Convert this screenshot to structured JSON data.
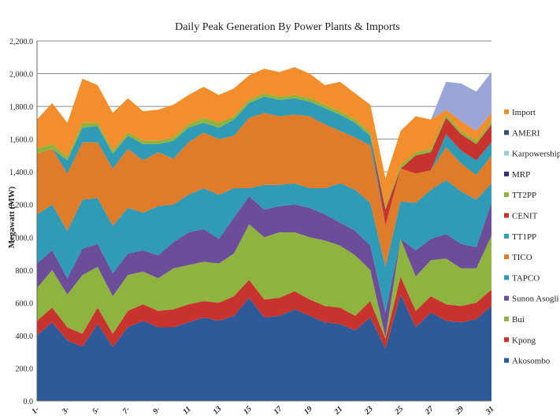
{
  "chart_data": {
    "type": "area",
    "stacked": true,
    "title": "Daily Peak Generation By Power Plants & Imports",
    "ylabel": "Megawatt (MW)",
    "xlabel": "",
    "ylim": [
      0,
      2200
    ],
    "yticks": [
      "0.0",
      "200.0",
      "400.0",
      "600.0",
      "800.0",
      "1,000.0",
      "1,200.0",
      "1,400.0",
      "1,600.0",
      "1,800.0",
      "2,000.0",
      "2,200.0"
    ],
    "x_tick_labels": [
      "1-",
      "3-",
      "5-",
      "7-",
      "9-",
      "11",
      "13",
      "15",
      "17",
      "19",
      "21",
      "23",
      "25",
      "27",
      "29",
      "31"
    ],
    "x": [
      1,
      2,
      3,
      4,
      5,
      6,
      7,
      8,
      9,
      10,
      11,
      12,
      13,
      14,
      15,
      16,
      17,
      18,
      19,
      20,
      21,
      22,
      23,
      24,
      25,
      26,
      27,
      28,
      29,
      30,
      31
    ],
    "grid": "horizontal",
    "legend_position": "right",
    "legend_order": [
      "Import",
      "AMERI",
      "Karpowership",
      "MRP",
      "TT2PP",
      "CENIT",
      "TT1PP",
      "TICO",
      "TAPCO",
      "Sunon Asogli",
      "Bui",
      "Kpong",
      "Akosombo"
    ],
    "series": [
      {
        "name": "Akosombo",
        "color": "#2d5b9a",
        "values": [
          400,
          480,
          370,
          330,
          470,
          330,
          450,
          490,
          450,
          450,
          480,
          510,
          490,
          520,
          630,
          510,
          520,
          560,
          520,
          480,
          470,
          430,
          510,
          320,
          650,
          450,
          540,
          490,
          480,
          500,
          580
        ]
      },
      {
        "name": "Kpong",
        "color": "#c8332d",
        "values": [
          90,
          90,
          80,
          80,
          100,
          80,
          100,
          100,
          100,
          110,
          110,
          100,
          110,
          120,
          110,
          110,
          110,
          110,
          100,
          100,
          100,
          90,
          100,
          60,
          110,
          100,
          100,
          100,
          100,
          100,
          100
        ]
      },
      {
        "name": "Bui",
        "color": "#8fb33f",
        "values": [
          200,
          230,
          200,
          360,
          250,
          230,
          220,
          200,
          200,
          250,
          240,
          240,
          240,
          260,
          340,
          380,
          400,
          360,
          380,
          400,
          380,
          370,
          190,
          10,
          230,
          210,
          220,
          280,
          230,
          210,
          330
        ]
      },
      {
        "name": "Sunon Asogli",
        "color": "#6b4d9a",
        "values": [
          150,
          120,
          100,
          160,
          140,
          140,
          130,
          130,
          140,
          160,
          200,
          200,
          150,
          220,
          170,
          170,
          160,
          170,
          180,
          160,
          140,
          150,
          150,
          150,
          0,
          160,
          130,
          150,
          150,
          130,
          200
        ]
      },
      {
        "name": "TAPCO",
        "color": "#2f9bb5",
        "values": [
          300,
          280,
          290,
          300,
          280,
          290,
          280,
          230,
          300,
          230,
          230,
          250,
          270,
          180,
          50,
          150,
          130,
          130,
          120,
          160,
          240,
          250,
          260,
          280,
          230,
          290,
          300,
          330,
          320,
          290,
          120
        ]
      },
      {
        "name": "TICO",
        "color": "#e07b2a",
        "values": [
          370,
          340,
          350,
          350,
          340,
          350,
          360,
          320,
          330,
          280,
          320,
          340,
          340,
          320,
          430,
          440,
          420,
          420,
          440,
          390,
          320,
          320,
          350,
          250,
          200,
          180,
          120,
          200,
          170,
          150,
          170
        ]
      },
      {
        "name": "TT1PP",
        "color": "#2f9bb5",
        "values": [
          0,
          0,
          80,
          90,
          100,
          90,
          80,
          100,
          50,
          110,
          90,
          60,
          70,
          100,
          90,
          100,
          100,
          100,
          90,
          100,
          100,
          90,
          60,
          0,
          0,
          0,
          0,
          80,
          80,
          90,
          80
        ]
      },
      {
        "name": "CENIT",
        "color": "#c8332d",
        "values": [
          0,
          0,
          0,
          0,
          0,
          0,
          0,
          0,
          0,
          0,
          0,
          0,
          0,
          0,
          0,
          0,
          0,
          0,
          0,
          0,
          0,
          0,
          0,
          100,
          0,
          110,
          110,
          100,
          100,
          100,
          110
        ]
      },
      {
        "name": "TT2PP",
        "color": "#8fb33f",
        "values": [
          30,
          30,
          20,
          30,
          20,
          20,
          20,
          20,
          20,
          20,
          20,
          30,
          30,
          20,
          20,
          20,
          20,
          20,
          20,
          20,
          20,
          20,
          20,
          20,
          20,
          20,
          20,
          20,
          20,
          20,
          20
        ]
      },
      {
        "name": "MRP",
        "color": "#3a2f6e",
        "values": [
          0,
          0,
          0,
          0,
          0,
          0,
          0,
          0,
          0,
          0,
          0,
          0,
          0,
          0,
          0,
          0,
          0,
          0,
          0,
          0,
          0,
          0,
          0,
          0,
          0,
          0,
          0,
          0,
          0,
          0,
          0
        ]
      },
      {
        "name": "Karpowership",
        "color": "#9cc9e0",
        "values": [
          0,
          0,
          0,
          0,
          0,
          0,
          0,
          0,
          0,
          0,
          0,
          0,
          0,
          0,
          0,
          0,
          0,
          0,
          0,
          0,
          0,
          0,
          0,
          0,
          0,
          0,
          0,
          0,
          0,
          0,
          0
        ]
      },
      {
        "name": "AMERI",
        "color": "#3a4f7a",
        "values": [
          0,
          0,
          0,
          0,
          0,
          0,
          0,
          0,
          0,
          0,
          0,
          0,
          0,
          0,
          0,
          0,
          0,
          0,
          0,
          0,
          0,
          0,
          0,
          0,
          0,
          0,
          0,
          0,
          0,
          0,
          0
        ]
      },
      {
        "name": "Import",
        "color": "#f28e2b",
        "values": [
          180,
          250,
          210,
          270,
          230,
          230,
          210,
          180,
          190,
          200,
          180,
          190,
          170,
          170,
          150,
          150,
          150,
          170,
          150,
          120,
          180,
          160,
          170,
          170,
          210,
          220,
          180,
          30,
          60,
          60,
          50
        ]
      },
      {
        "name": "Import (upper)",
        "color": "#9aa5d8",
        "values": [
          0,
          0,
          0,
          0,
          0,
          0,
          0,
          0,
          0,
          0,
          0,
          0,
          0,
          0,
          0,
          0,
          0,
          0,
          0,
          0,
          0,
          0,
          0,
          0,
          0,
          0,
          0,
          170,
          230,
          240,
          250
        ]
      }
    ]
  }
}
